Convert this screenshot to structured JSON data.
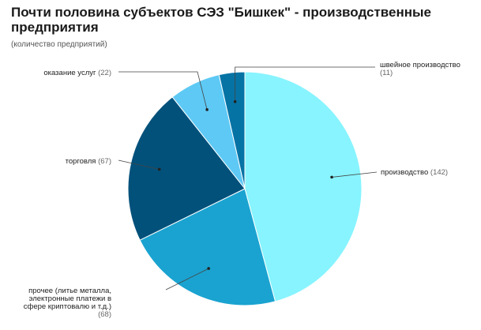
{
  "header": {
    "title": "Почти половина субъектов СЭЗ \"Бишкек\" - производственные предприятия",
    "subtitle": "(количество предприятий)"
  },
  "chart_data": {
    "type": "pie",
    "title": "Почти половина субъектов СЭЗ \"Бишкек\" - производственные предприятия",
    "subtitle": "(количество предприятий)",
    "slices": [
      {
        "label": "производство",
        "value": 142,
        "value_text": "(142)",
        "color": "#87f4ff"
      },
      {
        "label": "прочее (литье металла, электронные платежи в сфере криптовалю и т.д.)",
        "value": 68,
        "value_text": "(68)",
        "color": "#1aa3d0"
      },
      {
        "label": "торговля",
        "value": 67,
        "value_text": "(67)",
        "color": "#02517b"
      },
      {
        "label": "оказание услуг",
        "value": 22,
        "value_text": "(22)",
        "color": "#5ec9f5"
      },
      {
        "label": "швейное производство",
        "value": 11,
        "value_text": "(11)",
        "color": "#0673a5"
      }
    ],
    "start_angle": "12 o'clock",
    "direction": "clockwise",
    "legend": "none",
    "labels": "outside with leader lines"
  }
}
